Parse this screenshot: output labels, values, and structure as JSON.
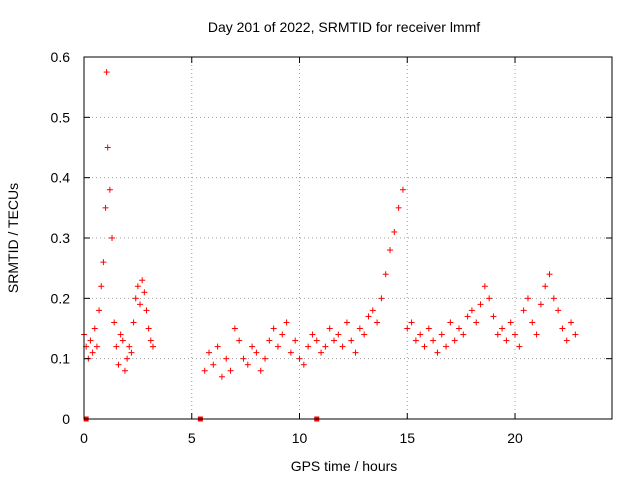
{
  "chart_data": {
    "type": "scatter",
    "title": "Day 201 of 2022, SRMTID for receiver lmmf",
    "xlabel": "GPS time / hours",
    "ylabel": "SRMTID / TECUs",
    "xlim": [
      0,
      24.5
    ],
    "ylim": [
      0,
      0.6
    ],
    "xticks": [
      0,
      5,
      10,
      15,
      20
    ],
    "xtick_labels": [
      "0",
      "5",
      "10",
      "15",
      "20"
    ],
    "yticks": [
      0,
      0.1,
      0.2,
      0.3,
      0.4,
      0.5,
      0.6
    ],
    "ytick_labels": [
      "0",
      "0.1",
      "0.2",
      "0.3",
      "0.4",
      "0.5",
      "0.6"
    ],
    "grid": true,
    "marker": "plus",
    "color": "#ff0000",
    "gap_hours": [
      3.3,
      5.5
    ],
    "zero_markers_x": [
      0.1,
      5.4,
      10.8
    ],
    "series": [
      {
        "name": "SRMTID",
        "x": [
          0.0,
          0.1,
          0.2,
          0.3,
          0.4,
          0.5,
          0.6,
          0.7,
          0.8,
          0.9,
          1.0,
          1.05,
          1.1,
          1.2,
          1.3,
          1.4,
          1.5,
          1.6,
          1.7,
          1.8,
          1.9,
          2.0,
          2.1,
          2.2,
          2.3,
          2.4,
          2.5,
          2.6,
          2.7,
          2.8,
          2.9,
          3.0,
          3.1,
          3.2,
          5.6,
          5.8,
          6.0,
          6.2,
          6.4,
          6.6,
          6.8,
          7.0,
          7.2,
          7.4,
          7.6,
          7.8,
          8.0,
          8.2,
          8.4,
          8.6,
          8.8,
          9.0,
          9.2,
          9.4,
          9.6,
          9.8,
          10.0,
          10.2,
          10.4,
          10.6,
          10.8,
          11.0,
          11.2,
          11.4,
          11.6,
          11.8,
          12.0,
          12.2,
          12.4,
          12.6,
          12.8,
          13.0,
          13.2,
          13.4,
          13.6,
          13.8,
          14.0,
          14.2,
          14.4,
          14.6,
          14.8,
          15.0,
          15.2,
          15.4,
          15.6,
          15.8,
          16.0,
          16.2,
          16.4,
          16.6,
          16.8,
          17.0,
          17.2,
          17.4,
          17.6,
          17.8,
          18.0,
          18.2,
          18.4,
          18.6,
          18.8,
          19.0,
          19.2,
          19.4,
          19.6,
          19.8,
          20.0,
          20.2,
          20.4,
          20.6,
          20.8,
          21.0,
          21.2,
          21.4,
          21.6,
          21.8,
          22.0,
          22.2,
          22.4,
          22.6,
          22.8
        ],
        "y": [
          0.14,
          0.12,
          0.1,
          0.13,
          0.11,
          0.15,
          0.12,
          0.18,
          0.22,
          0.26,
          0.35,
          0.575,
          0.45,
          0.38,
          0.3,
          0.16,
          0.12,
          0.09,
          0.14,
          0.13,
          0.08,
          0.1,
          0.12,
          0.11,
          0.16,
          0.2,
          0.22,
          0.19,
          0.23,
          0.21,
          0.18,
          0.15,
          0.13,
          0.12,
          0.08,
          0.11,
          0.09,
          0.12,
          0.07,
          0.1,
          0.08,
          0.15,
          0.13,
          0.1,
          0.09,
          0.12,
          0.11,
          0.08,
          0.1,
          0.13,
          0.15,
          0.12,
          0.14,
          0.16,
          0.11,
          0.13,
          0.1,
          0.09,
          0.12,
          0.14,
          0.13,
          0.11,
          0.12,
          0.15,
          0.13,
          0.14,
          0.12,
          0.16,
          0.13,
          0.11,
          0.15,
          0.14,
          0.17,
          0.18,
          0.16,
          0.2,
          0.24,
          0.28,
          0.31,
          0.35,
          0.38,
          0.15,
          0.16,
          0.13,
          0.14,
          0.12,
          0.15,
          0.13,
          0.11,
          0.14,
          0.12,
          0.16,
          0.13,
          0.15,
          0.14,
          0.17,
          0.18,
          0.16,
          0.19,
          0.22,
          0.2,
          0.17,
          0.14,
          0.15,
          0.13,
          0.16,
          0.14,
          0.12,
          0.18,
          0.2,
          0.16,
          0.14,
          0.19,
          0.22,
          0.24,
          0.2,
          0.18,
          0.15,
          0.13,
          0.16,
          0.14
        ]
      }
    ]
  }
}
